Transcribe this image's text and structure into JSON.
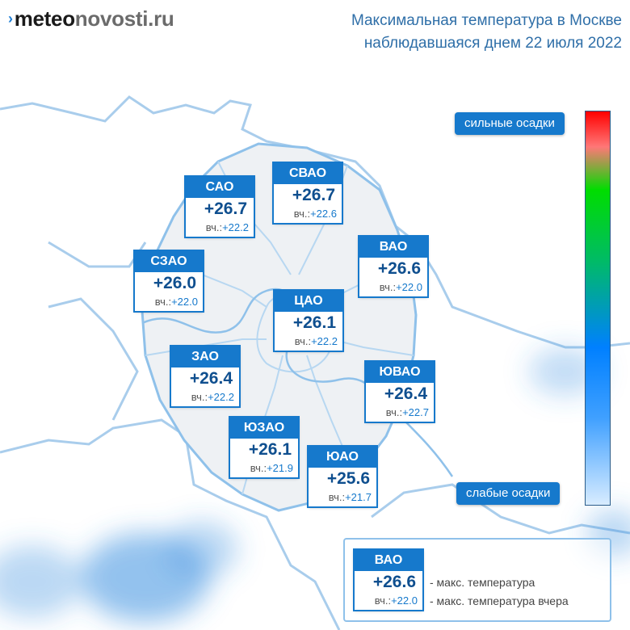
{
  "header": {
    "logo_mark": "›",
    "logo_bold": "meteo",
    "logo_rest": "novosti.ru",
    "title_line1": "Максимальная температура в Москве",
    "title_line2": "наблюдавшаяся днем 22 июля 2022"
  },
  "scale": {
    "top_label": "сильные осадки",
    "bottom_label": "слабые осадки",
    "colors": [
      "#ff0000",
      "#ff7777",
      "#00dd00",
      "#00bb66",
      "#0080ff",
      "#40a0ff",
      "#d8ecff"
    ]
  },
  "districts": [
    {
      "name": "САО",
      "temp": "+26.7",
      "yday_label": "вч.:",
      "yday": "+22.2"
    },
    {
      "name": "СВАО",
      "temp": "+26.7",
      "yday_label": "вч.:",
      "yday": "+22.6"
    },
    {
      "name": "ВАО",
      "temp": "+26.6",
      "yday_label": "вч.:",
      "yday": "+22.0"
    },
    {
      "name": "СЗАО",
      "temp": "+26.0",
      "yday_label": "вч.:",
      "yday": "+22.0"
    },
    {
      "name": "ЦАО",
      "temp": "+26.1",
      "yday_label": "вч.:",
      "yday": "+22.2"
    },
    {
      "name": "ЗАО",
      "temp": "+26.4",
      "yday_label": "вч.:",
      "yday": "+22.2"
    },
    {
      "name": "ЮВАО",
      "temp": "+26.4",
      "yday_label": "вч.:",
      "yday": "+22.7"
    },
    {
      "name": "ЮЗАО",
      "temp": "+26.1",
      "yday_label": "вч.:",
      "yday": "+21.9"
    },
    {
      "name": "ЮАО",
      "temp": "+25.6",
      "yday_label": "вч.:",
      "yday": "+21.7"
    }
  ],
  "legend": {
    "name": "ВАО",
    "temp": "+26.6",
    "yday_label": "вч.:",
    "yday": "+22.0",
    "note_max": "- макс. температура",
    "note_yesterday": "- макс. температура вчера"
  },
  "colors": {
    "accent": "#1679cc",
    "title_text": "#2f6fa8",
    "boundary": "#8fc1ea",
    "precip": "#3d8fe0"
  }
}
